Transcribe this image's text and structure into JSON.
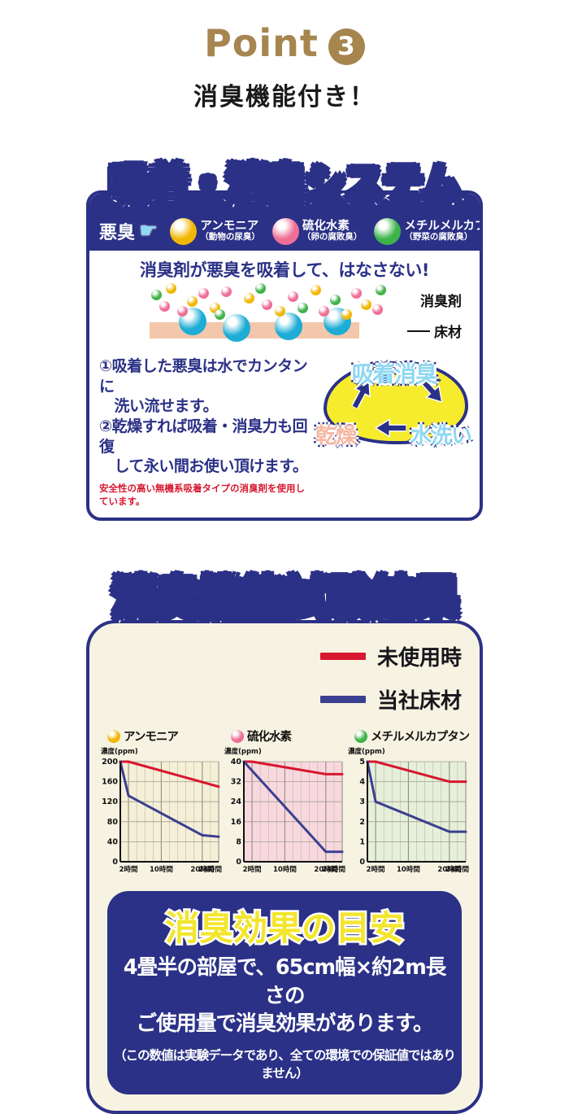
{
  "palette": {
    "navy": "#2b3186",
    "red": "#d7182f",
    "line_blue": "#3a3f90",
    "cream": "#f7f3e2",
    "yellow": "#f6ec2d",
    "cyan_text": "#8fd8f2",
    "peach_text": "#f6b8a2",
    "floor_peach": "#f3c7ab",
    "deodorizer_cyan": "#1cacd6",
    "point_brown": "#a6854f",
    "guide_yellow": "#f3e52c",
    "mol_yellow": "#f2b705",
    "mol_pink": "#ee6e96",
    "mol_green": "#3eb34a"
  },
  "header": {
    "point_label": "Point",
    "point_number": "3",
    "subtitle": "消臭機能付き！"
  },
  "system_panel": {
    "title": "吸着・消臭システム",
    "odor_label": "悪臭",
    "pointer_icon": "pointing-hand",
    "odors": [
      {
        "name": "アンモニア",
        "source": "（動物の尿臭）",
        "color": "#f2b705"
      },
      {
        "name": "硫化水素",
        "source": "（卵の腐敗臭）",
        "color": "#ee6e96"
      },
      {
        "name": "メチルメルカプタン",
        "source": "（野菜の腐敗臭）",
        "color": "#3eb34a"
      }
    ],
    "headline": "消臭剤が悪臭を吸着して、はなさない!",
    "diagram": {
      "deodorizer_label": "消臭剤",
      "floor_label": "床材"
    },
    "points": [
      "①吸着した悪臭は水でカンタンに\n　洗い流せます。",
      "②乾燥すれば吸着・消臭力も回復\n　して永い間お使い頂けます。"
    ],
    "safety_note": "安全性の高い無機系吸着タイプの消臭剤を使用しています。",
    "cycle": {
      "top": "吸着消臭",
      "bottom_left": "乾燥",
      "bottom_right": "水洗い"
    }
  },
  "results_panel": {
    "title": "消臭機能試験結果",
    "legend": [
      {
        "label": "未使用時",
        "color": "#d7182f"
      },
      {
        "label": "当社床材",
        "color": "#3a3f90"
      }
    ],
    "guide_box": {
      "title": "消臭効果の目安",
      "body": "4畳半の部屋で、65cm幅×約2m長さの\nご使用量で消臭効果があります。",
      "note": "（この数値は実験データであり、全ての環境での保証値ではありません）"
    }
  },
  "chart_data": [
    {
      "type": "line",
      "title": "アンモニア",
      "marker_color": "#f2b705",
      "bg_color": "#f5efd7",
      "ylabel": "濃度(ppm)",
      "ylim": [
        0,
        200
      ],
      "yticks": [
        0,
        40,
        80,
        120,
        160,
        200
      ],
      "xlim": [
        0,
        24
      ],
      "xticks": [
        {
          "x": 2,
          "label": "2時間"
        },
        {
          "x": 10,
          "label": "10時間"
        },
        {
          "x": 20,
          "label": "20時間"
        },
        {
          "x": 24,
          "label": "24時間"
        }
      ],
      "grid": true,
      "legend_position": "none",
      "series": [
        {
          "name": "未使用時",
          "color": "#d7182f",
          "points": [
            [
              0,
              200
            ],
            [
              2,
              200
            ],
            [
              24,
              150
            ]
          ]
        },
        {
          "name": "当社床材",
          "color": "#3a3f90",
          "points": [
            [
              0,
              200
            ],
            [
              2,
              132
            ],
            [
              20,
              53
            ],
            [
              24,
              50
            ]
          ]
        }
      ]
    },
    {
      "type": "line",
      "title": "硫化水素",
      "marker_color": "#ee6e96",
      "bg_color": "#f8d8de",
      "ylabel": "濃度(ppm)",
      "ylim": [
        0,
        40
      ],
      "yticks": [
        0,
        8,
        16,
        24,
        32,
        40
      ],
      "xlim": [
        0,
        24
      ],
      "xticks": [
        {
          "x": 2,
          "label": "2時間"
        },
        {
          "x": 10,
          "label": "10時間"
        },
        {
          "x": 20,
          "label": "20時間"
        },
        {
          "x": 24,
          "label": "24時間"
        }
      ],
      "grid": true,
      "legend_position": "none",
      "series": [
        {
          "name": "未使用時",
          "color": "#d7182f",
          "points": [
            [
              0,
              40
            ],
            [
              2,
              40
            ],
            [
              20,
              35
            ],
            [
              24,
              35
            ]
          ]
        },
        {
          "name": "当社床材",
          "color": "#3a3f90",
          "points": [
            [
              0,
              40
            ],
            [
              20,
              4
            ],
            [
              24,
              4
            ]
          ]
        }
      ]
    },
    {
      "type": "line",
      "title": "メチルメルカプタン",
      "marker_color": "#3eb34a",
      "bg_color": "#e6efda",
      "ylabel": "濃度(ppm)",
      "ylim": [
        0,
        5
      ],
      "yticks": [
        0,
        1,
        2,
        3,
        4,
        5
      ],
      "xlim": [
        0,
        24
      ],
      "xticks": [
        {
          "x": 2,
          "label": "2時間"
        },
        {
          "x": 10,
          "label": "10時間"
        },
        {
          "x": 20,
          "label": "20時間"
        },
        {
          "x": 24,
          "label": "24時間"
        }
      ],
      "grid": true,
      "legend_position": "none",
      "series": [
        {
          "name": "未使用時",
          "color": "#d7182f",
          "points": [
            [
              0,
              5
            ],
            [
              2,
              5
            ],
            [
              20,
              4
            ],
            [
              24,
              4
            ]
          ]
        },
        {
          "name": "当社床材",
          "color": "#3a3f90",
          "points": [
            [
              0,
              5
            ],
            [
              2,
              3
            ],
            [
              20,
              1.5
            ],
            [
              24,
              1.5
            ]
          ]
        }
      ]
    }
  ]
}
